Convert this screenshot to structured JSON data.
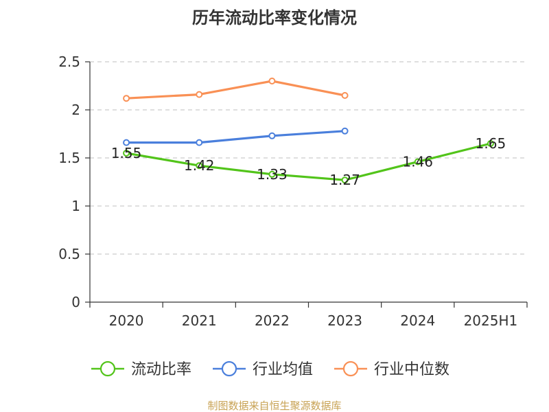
{
  "chart_data": {
    "type": "line",
    "title": "历年流动比率变化情况",
    "categories": [
      "2020",
      "2021",
      "2022",
      "2023",
      "2024",
      "2025H1"
    ],
    "ylim": [
      0,
      2.5
    ],
    "yticks": [
      "0",
      "0.5",
      "1",
      "1.5",
      "2",
      "2.5"
    ],
    "grid": true,
    "legend_position": "bottom",
    "series": [
      {
        "name": "流动比率",
        "color": "#52c41a",
        "values": [
          1.55,
          1.42,
          1.33,
          1.27,
          1.46,
          1.65
        ],
        "labels": [
          "1.55",
          "1.42",
          "1.33",
          "1.27",
          "1.46",
          "1.65"
        ]
      },
      {
        "name": "行业均值",
        "color": "#4a7fdc",
        "values": [
          1.66,
          1.66,
          1.73,
          1.78,
          null,
          null
        ]
      },
      {
        "name": "行业中位数",
        "color": "#f99055",
        "values": [
          2.12,
          2.16,
          2.3,
          2.15,
          null,
          null
        ]
      }
    ]
  },
  "footer": {
    "source": "制图数据来自恒生聚源数据库"
  }
}
